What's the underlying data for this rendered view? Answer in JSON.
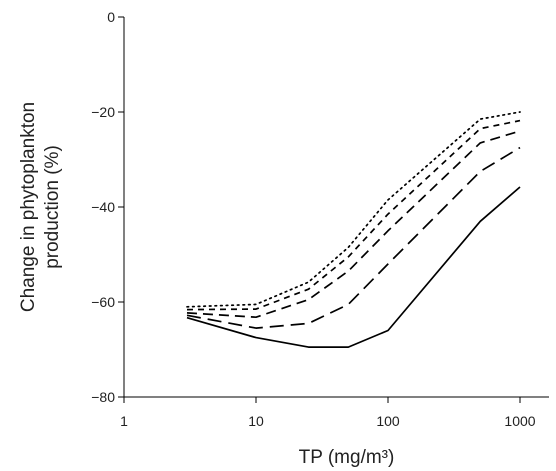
{
  "chart_data": {
    "type": "line",
    "xlabel": "TP (mg/m³)",
    "ylabel_lines": [
      "Change in phytoplankton",
      "production (%)"
    ],
    "xscale": "log",
    "xlim": [
      1,
      1000
    ],
    "ylim": [
      -80,
      0
    ],
    "x_ticks": [
      1,
      10,
      100,
      1000
    ],
    "x_tick_labels": [
      "1",
      "10",
      "100",
      "1000"
    ],
    "y_ticks": [
      0,
      -20,
      -40,
      -60,
      -80
    ],
    "y_tick_labels": [
      "0",
      "−20",
      "−40",
      "−60",
      "−80"
    ],
    "grid": false,
    "legend": "none",
    "series": [
      {
        "style": "solid",
        "x": [
          3,
          10,
          25,
          50,
          100,
          500,
          1000
        ],
        "y": [
          -63.3,
          -67.5,
          -69.5,
          -69.5,
          -66,
          -43,
          -35.8
        ]
      },
      {
        "style": "long-dash",
        "x": [
          3,
          10,
          25,
          50,
          100,
          500,
          1000
        ],
        "y": [
          -62.8,
          -65.5,
          -64.5,
          -60.5,
          -52,
          -32.5,
          -27.5
        ]
      },
      {
        "style": "dash",
        "x": [
          3,
          10,
          25,
          50,
          100,
          500,
          1000
        ],
        "y": [
          -62.3,
          -63.2,
          -59.5,
          -53.5,
          -45,
          -26.5,
          -24
        ]
      },
      {
        "style": "short-dash",
        "x": [
          3,
          10,
          25,
          50,
          100,
          500,
          1000
        ],
        "y": [
          -61.6,
          -61.5,
          -57.3,
          -50.5,
          -41.5,
          -23.5,
          -21.8
        ]
      },
      {
        "style": "dotted",
        "x": [
          3,
          10,
          25,
          50,
          100,
          500,
          1000
        ],
        "y": [
          -61,
          -60.5,
          -55.8,
          -48.5,
          -38.5,
          -21.5,
          -20
        ]
      }
    ]
  }
}
